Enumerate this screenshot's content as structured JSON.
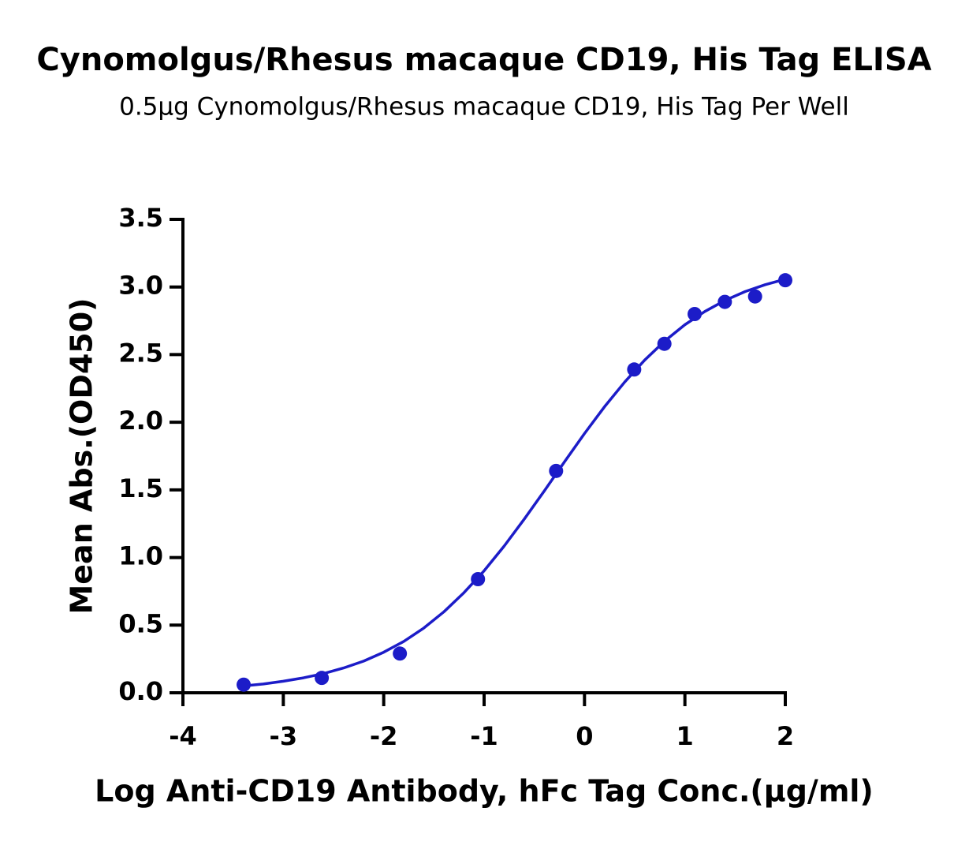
{
  "chart_data": {
    "type": "scatter",
    "title": "Cynomolgus/Rhesus macaque CD19, His Tag ELISA",
    "subtitle": "0.5μg Cynomolgus/Rhesus macaque CD19, His Tag Per Well",
    "x_label": "Log Anti-CD19 Antibody, hFc Tag Conc.(μg/ml)",
    "y_label": "Mean Abs.(OD450)",
    "xlim": [
      -4,
      2
    ],
    "xticks": [
      -4,
      -3,
      -2,
      -1,
      0,
      1,
      2
    ],
    "ylim": [
      0,
      3.5
    ],
    "yticks": [
      {
        "value": 0,
        "label": "0.0"
      },
      0.5,
      {
        "value": 1,
        "label": "1.0"
      },
      1.5,
      {
        "value": 2,
        "label": "2.0"
      },
      2.5,
      {
        "value": 3,
        "label": "3.0"
      },
      3.5
    ],
    "series": [
      {
        "color": "#1c1cc8",
        "x": [
          -3.395,
          -2.617,
          -1.839,
          -1.061,
          -0.283,
          0.495,
          0.796,
          1.097,
          1.398,
          1.699,
          2.0
        ],
        "values": [
          0.06,
          0.11,
          0.29,
          0.84,
          1.64,
          2.39,
          2.58,
          2.8,
          2.89,
          2.93,
          3.05
        ]
      }
    ],
    "fit": {
      "color": "#1c1cc8",
      "x": [
        -3.4,
        -3.2,
        -3.0,
        -2.8,
        -2.6,
        -2.4,
        -2.2,
        -2.0,
        -1.8,
        -1.6,
        -1.4,
        -1.2,
        -1.0,
        -0.8,
        -0.6,
        -0.4,
        -0.2,
        0,
        0.2,
        0.4,
        0.6,
        0.8,
        1.0,
        1.2,
        1.4,
        1.6,
        1.8,
        2.0
      ],
      "values": [
        0.05,
        0.065,
        0.085,
        0.11,
        0.142,
        0.183,
        0.234,
        0.3,
        0.38,
        0.479,
        0.599,
        0.74,
        0.902,
        1.085,
        1.284,
        1.493,
        1.707,
        1.916,
        2.115,
        2.297,
        2.46,
        2.601,
        2.721,
        2.819,
        2.901,
        2.966,
        3.017,
        3.058
      ]
    }
  }
}
